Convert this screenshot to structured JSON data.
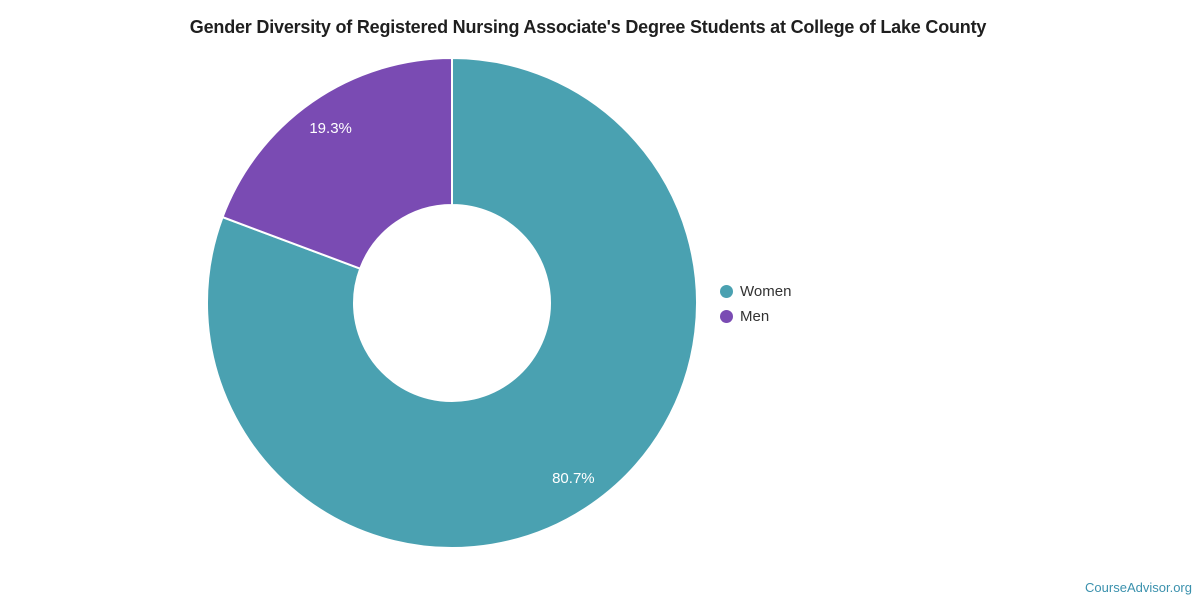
{
  "chart_data": {
    "type": "pie",
    "donut": true,
    "title": "Gender Diversity of Registered Nursing Associate's Degree Students at College of Lake County",
    "categories": [
      "Women",
      "Men"
    ],
    "values": [
      80.7,
      19.3
    ],
    "value_labels": [
      "80.7%",
      "19.3%"
    ],
    "colors": [
      "#4AA1B1",
      "#7A4BB3"
    ],
    "slice_label_color": "#ffffff",
    "legend_position": "right",
    "title_color": "#1f1f1f",
    "legend_text_color": "#333333"
  },
  "footer": {
    "source_label": "CourseAdvisor.org",
    "source_color": "#3B91AD"
  }
}
